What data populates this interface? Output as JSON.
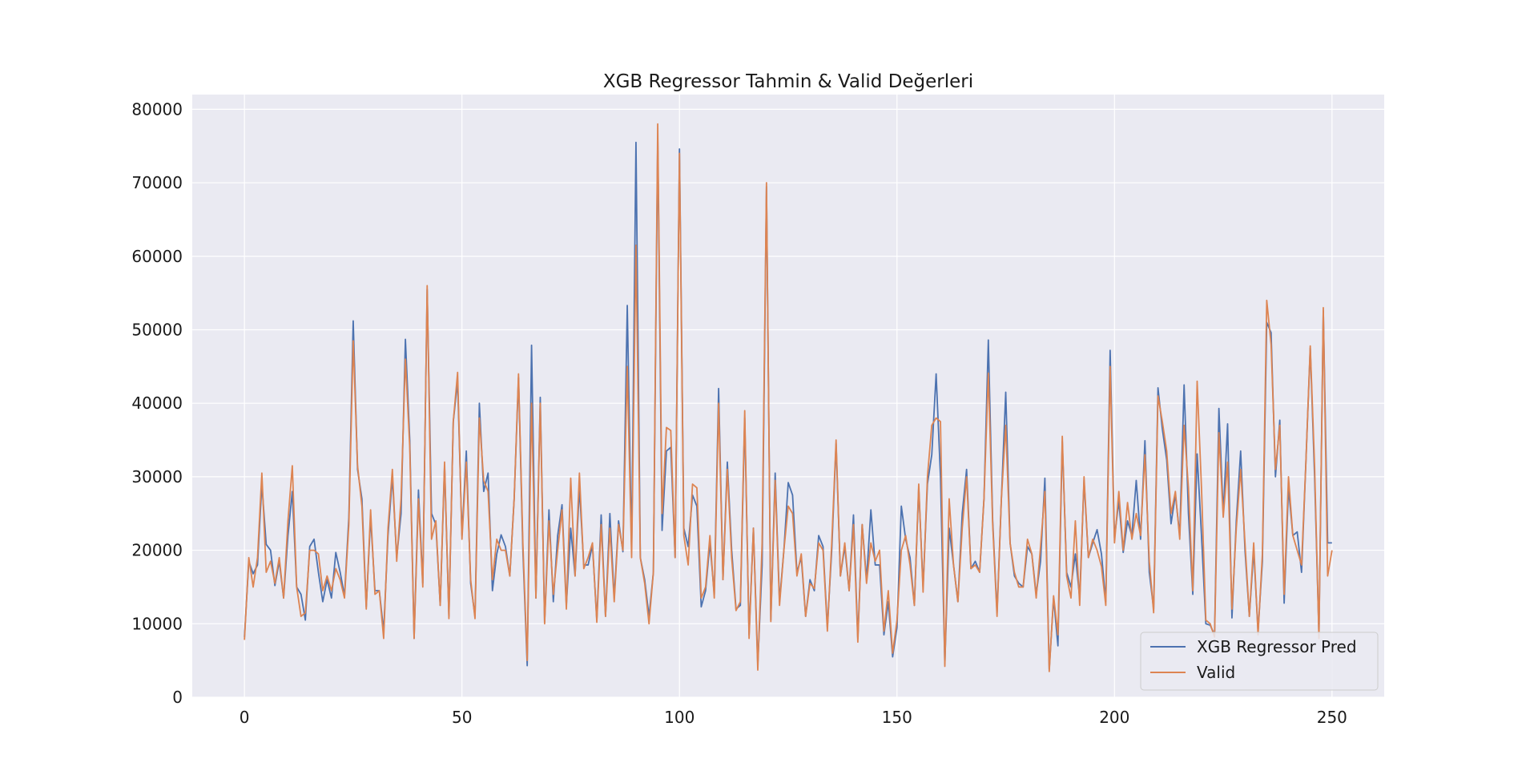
{
  "chart_data": {
    "type": "line",
    "title": "XGB Regressor Tahmin & Valid Değerleri",
    "xlabel": "",
    "ylabel": "",
    "xlim": [
      -12,
      262
    ],
    "ylim": [
      0,
      82000
    ],
    "x_ticks": [
      0,
      50,
      100,
      150,
      200,
      250
    ],
    "y_ticks": [
      0,
      10000,
      20000,
      30000,
      40000,
      50000,
      60000,
      70000,
      80000
    ],
    "grid": true,
    "legend_position": "lower-right",
    "background": "#eaeaf2",
    "series": [
      {
        "name": "XGB Regressor Pred",
        "color": "#4c72b0",
        "values": [
          8200,
          18500,
          16800,
          18000,
          29000,
          20800,
          20000,
          15200,
          18500,
          13500,
          22000,
          28000,
          15000,
          14000,
          10500,
          20500,
          21500,
          17000,
          13000,
          16000,
          13500,
          19700,
          17000,
          13800,
          24500,
          51200,
          31000,
          27000,
          12300,
          24500,
          14500,
          14500,
          9000,
          22000,
          30000,
          19000,
          25000,
          48700,
          35000,
          8000,
          28200,
          15500,
          55500,
          25000,
          23500,
          12500,
          31500,
          11000,
          37500,
          43000,
          22000,
          33500,
          15500,
          11000,
          40000,
          28000,
          30500,
          14500,
          19500,
          22100,
          20500,
          16500,
          27000,
          43500,
          20000,
          4300,
          47900,
          13500,
          40800,
          10200,
          25500,
          13000,
          22000,
          26200,
          12500,
          23000,
          16500,
          28500,
          18000,
          18000,
          20700,
          10500,
          24800,
          11000,
          25000,
          13500,
          24000,
          19800,
          53300,
          20000,
          75500,
          19000,
          16000,
          11000,
          17000,
          76000,
          22700,
          33500,
          34000,
          19000,
          74600,
          23000,
          20500,
          27500,
          26000,
          12300,
          14500,
          21000,
          14000,
          42000,
          16000,
          32000,
          20000,
          12000,
          12500,
          38000,
          8500,
          23000,
          4500,
          18000,
          69500,
          10500,
          30500,
          13000,
          20000,
          29200,
          27500,
          17000,
          19000,
          11000,
          16000,
          14500,
          22000,
          20500,
          9500,
          20000,
          34500,
          16500,
          20500,
          14500,
          24800,
          8000,
          23500,
          16000,
          25500,
          18000,
          18000,
          8500,
          13000,
          5500,
          9500,
          26000,
          21500,
          19000,
          12500,
          28500,
          15000,
          29000,
          33000,
          44000,
          30000,
          4500,
          23000,
          18000,
          13000,
          25000,
          31000,
          17500,
          18500,
          17000,
          27000,
          48600,
          24000,
          11500,
          27000,
          41500,
          21000,
          16500,
          15500,
          15000,
          20500,
          19500,
          14000,
          18500,
          29800,
          3800,
          13500,
          7000,
          34800,
          17000,
          15000,
          19500,
          13500,
          29500,
          19000,
          21000,
          22800,
          19500,
          13000,
          47200,
          21700,
          26700,
          19700,
          24000,
          22000,
          29500,
          21500,
          34900,
          17000,
          12000,
          42100,
          36500,
          32300,
          23600,
          27600,
          22000,
          42500,
          25000,
          14000,
          33100,
          22000,
          10000,
          9800,
          8500,
          39300,
          25000,
          37200,
          10800,
          24000,
          33500,
          20000,
          11000,
          20000,
          9000,
          18500,
          51000,
          49600,
          30000,
          37700,
          12800,
          28500,
          22000,
          22500,
          17000,
          32000,
          47500,
          30000,
          8500,
          52600,
          21000,
          21000
        ],
        "values_by": "index"
      },
      {
        "name": "Valid",
        "color": "#dd8452",
        "values": [
          7800,
          19000,
          15000,
          19000,
          30500,
          17000,
          18500,
          15500,
          19000,
          13500,
          24000,
          31500,
          15000,
          11000,
          11500,
          20000,
          20000,
          19500,
          14500,
          16500,
          14500,
          17500,
          16000,
          13500,
          23500,
          48500,
          31500,
          26000,
          12000,
          25500,
          14000,
          14500,
          8000,
          23000,
          31000,
          18500,
          27000,
          46000,
          34000,
          8000,
          27000,
          15000,
          56000,
          21500,
          24000,
          12500,
          32000,
          10700,
          37500,
          44200,
          21500,
          32000,
          16000,
          10700,
          38000,
          29500,
          28000,
          16000,
          21500,
          20000,
          20000,
          16500,
          27000,
          44000,
          21000,
          5000,
          40000,
          13500,
          40000,
          10000,
          24000,
          14000,
          20000,
          25500,
          12000,
          29800,
          16500,
          30500,
          17500,
          19000,
          21000,
          10200,
          23500,
          11000,
          23000,
          13000,
          23500,
          20000,
          45000,
          19000,
          61500,
          19000,
          15500,
          10000,
          17000,
          78000,
          25000,
          36700,
          36300,
          19000,
          74000,
          22000,
          18000,
          29000,
          28500,
          13500,
          15000,
          22000,
          13500,
          40000,
          16000,
          31000,
          19000,
          11800,
          13000,
          39000,
          8000,
          23000,
          3700,
          21000,
          70000,
          10300,
          29500,
          12500,
          20000,
          26000,
          25000,
          16500,
          19500,
          11000,
          15500,
          14800,
          21000,
          20000,
          9000,
          21000,
          35000,
          16500,
          21000,
          14500,
          23500,
          7500,
          23500,
          15500,
          21000,
          18500,
          20000,
          9000,
          14500,
          6000,
          10500,
          20000,
          22000,
          18000,
          12500,
          29000,
          14300,
          30000,
          37000,
          38000,
          37500,
          4200,
          27000,
          18000,
          13000,
          23000,
          30000,
          17500,
          18000,
          17000,
          27000,
          44100,
          23500,
          11000,
          27000,
          37000,
          21000,
          17000,
          15000,
          15000,
          21500,
          19500,
          13500,
          20500,
          28000,
          3500,
          13800,
          8500,
          35500,
          16500,
          13500,
          24000,
          12500,
          30000,
          19000,
          21500,
          20000,
          17800,
          12500,
          45000,
          21000,
          28000,
          20000,
          26500,
          21500,
          25000,
          22000,
          33000,
          18500,
          11500,
          41000,
          37500,
          33500,
          25000,
          28000,
          21500,
          37000,
          28500,
          14500,
          43000,
          28500,
          10500,
          10000,
          8200,
          36000,
          24500,
          32000,
          12000,
          23000,
          31000,
          21000,
          11000,
          21000,
          8500,
          19500,
          54000,
          48000,
          31000,
          37000,
          14000,
          30000,
          22000,
          20000,
          18000,
          32000,
          47800,
          31500,
          8000,
          53000,
          16500,
          20000
        ],
        "values_by": "index"
      }
    ]
  }
}
